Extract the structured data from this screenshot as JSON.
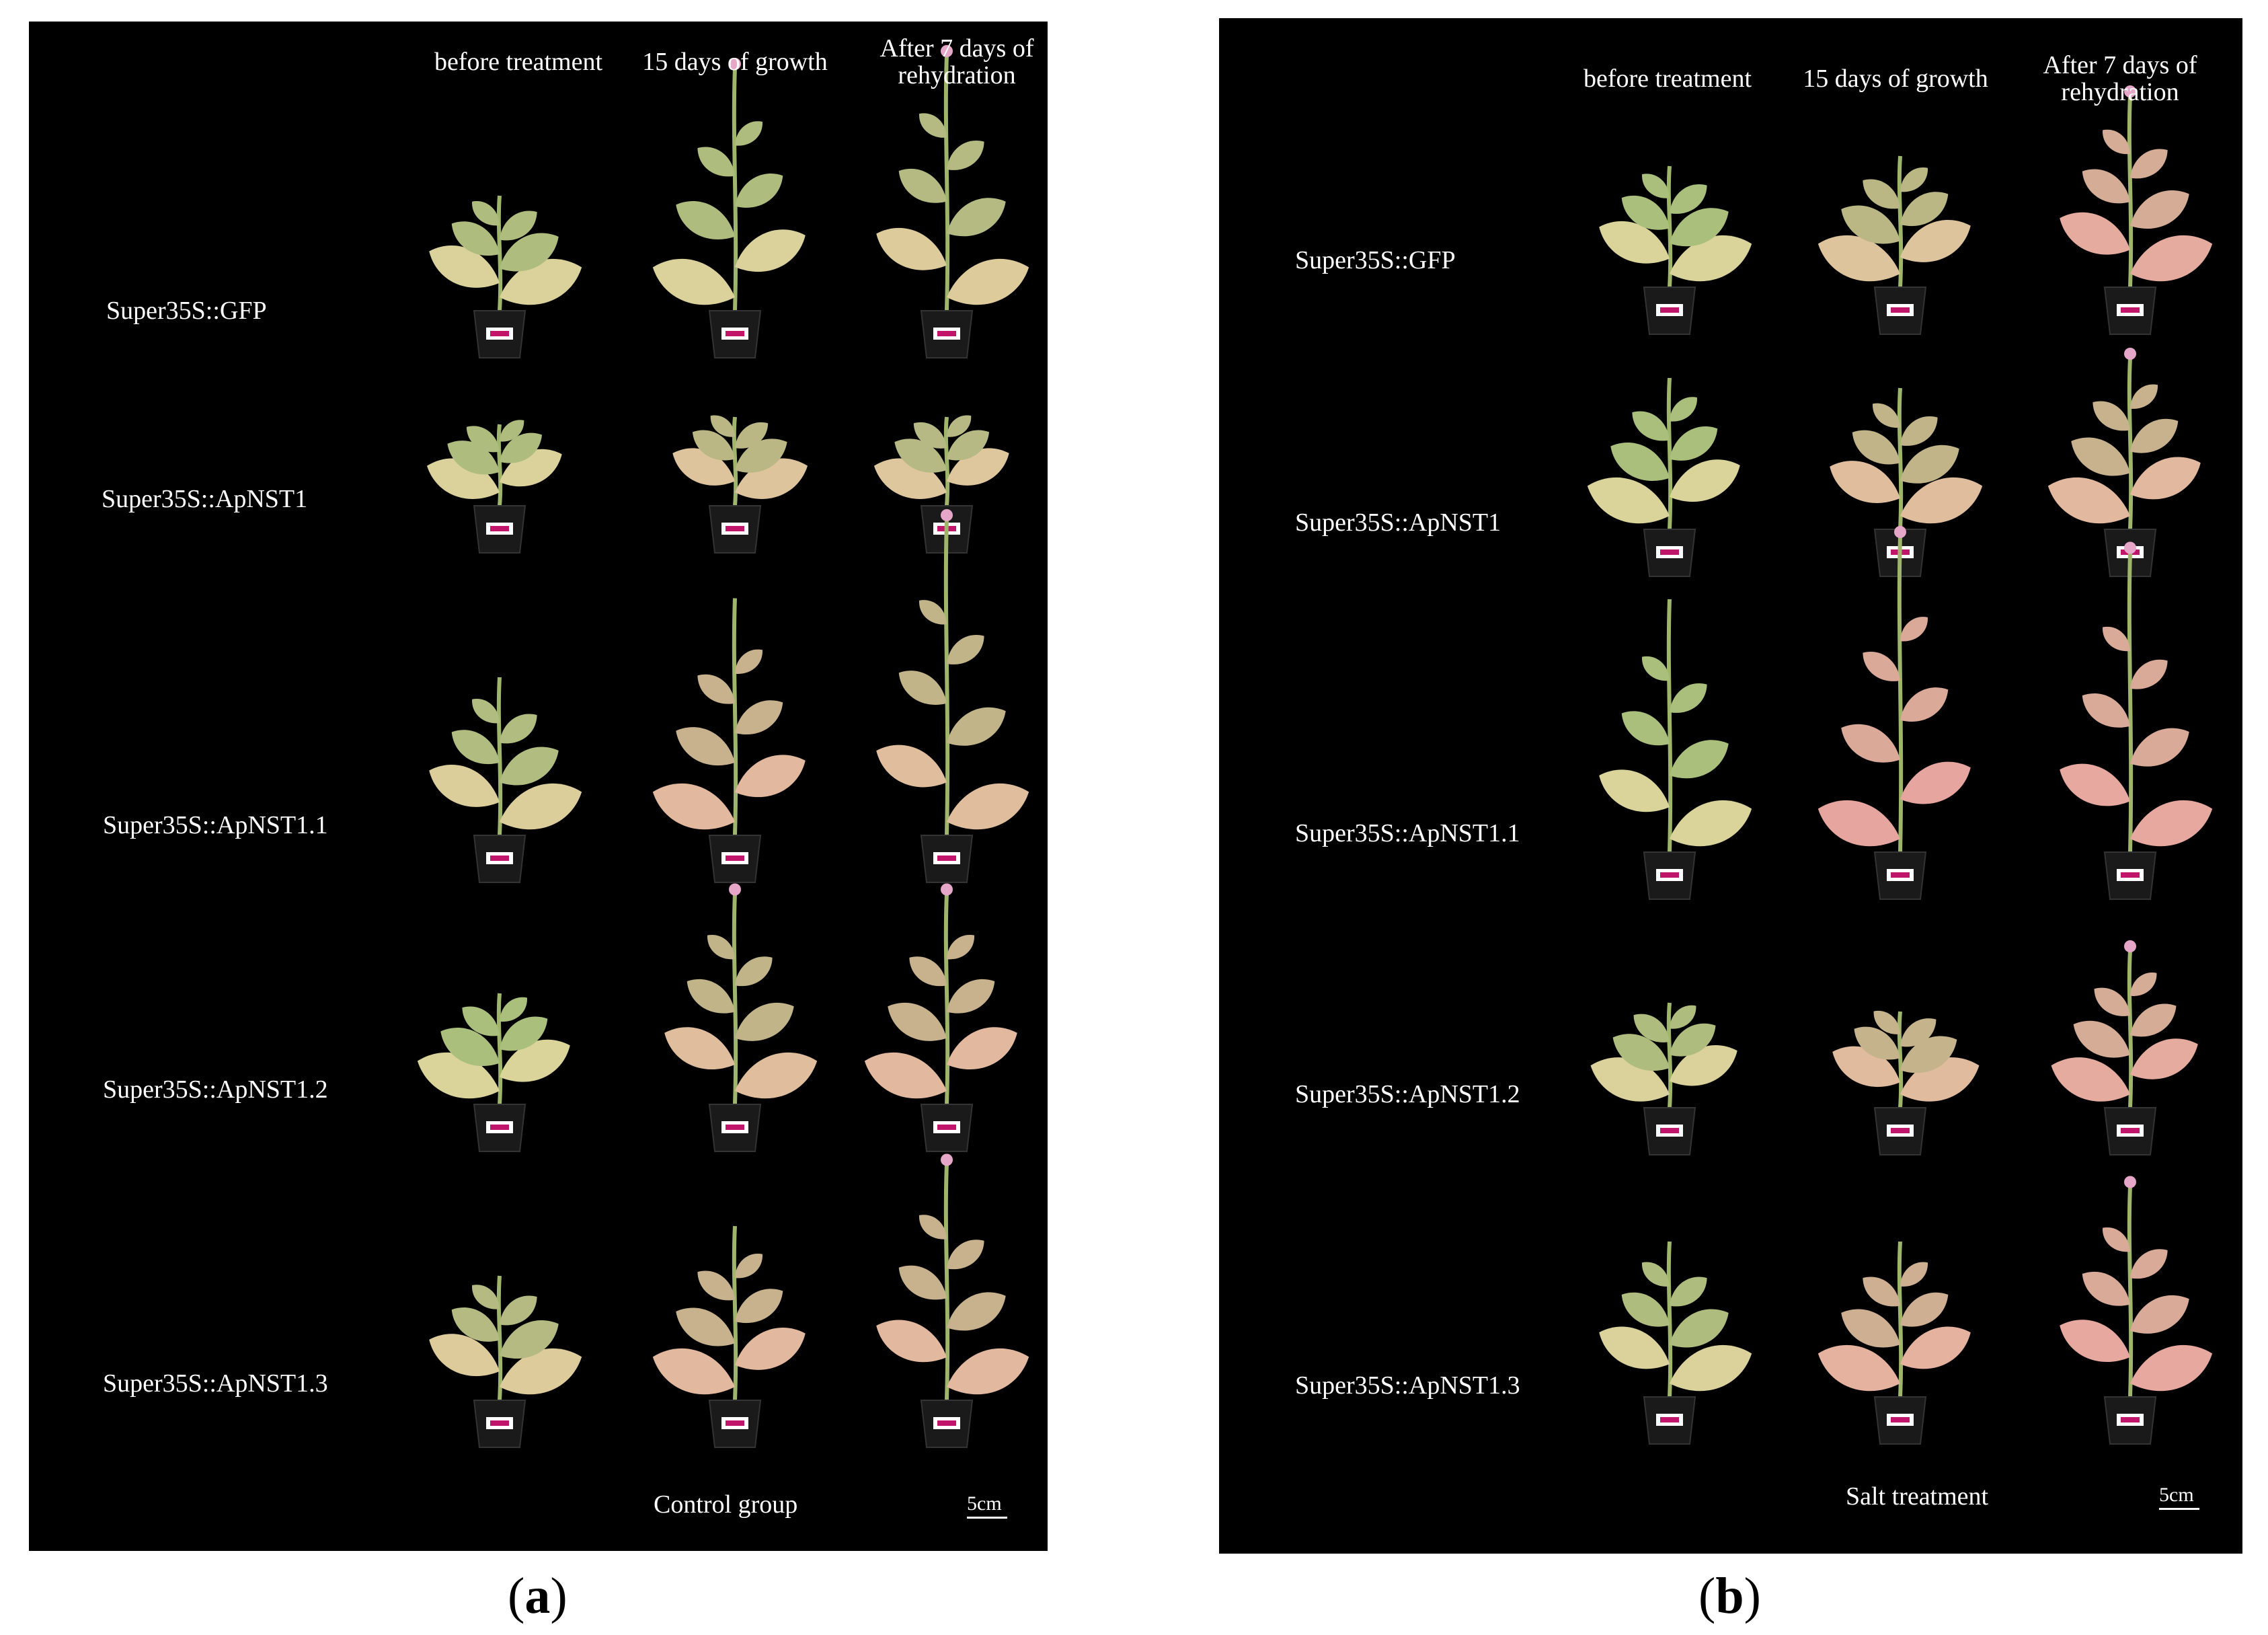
{
  "colors": {
    "background": "#000000",
    "text": "#ffffff",
    "figure_background": "#ffffff",
    "leaf_healthy": "#a7c07a",
    "leaf_pale": "#d9d79a",
    "leaf_stressed": "#e8a3a0",
    "stem": "#9fb56b",
    "pot": "#1a1a1a",
    "tag": "#ffffff",
    "tag_mark": "#c0156b"
  },
  "panels": [
    {
      "letter_prefix": "(",
      "letter": "a",
      "letter_suffix": ")",
      "column_headers": [
        {
          "line1": "before treatment",
          "line2": ""
        },
        {
          "line1": "15 days of growth",
          "line2": ""
        },
        {
          "line1": "After 7 days of",
          "line2": "rehydration"
        }
      ],
      "rows": [
        {
          "label": "Super35S::GFP",
          "plants": [
            {
              "height": 0.45,
              "stress": 0.1
            },
            {
              "height": 0.95,
              "stress": 0.1,
              "flower": true
            },
            {
              "height": 1.0,
              "stress": 0.2,
              "flower": true
            }
          ]
        },
        {
          "label": "Super35S::ApNST1",
          "plants": [
            {
              "height": 0.55,
              "stress": 0.1
            },
            {
              "height": 0.6,
              "stress": 0.3
            },
            {
              "height": 0.6,
              "stress": 0.25
            }
          ]
        },
        {
          "label": "Super35S::ApNST1.1",
          "plants": [
            {
              "height": 0.5,
              "stress": 0.15
            },
            {
              "height": 0.75,
              "stress": 0.5
            },
            {
              "height": 1.0,
              "stress": 0.4,
              "flower": true
            }
          ]
        },
        {
          "label": "Super35S::ApNST1.2",
          "plants": [
            {
              "height": 0.5,
              "stress": 0.05
            },
            {
              "height": 0.95,
              "stress": 0.4,
              "flower": true
            },
            {
              "height": 0.95,
              "stress": 0.5,
              "flower": true
            }
          ]
        },
        {
          "label": "Super35S::ApNST1.3",
          "plants": [
            {
              "height": 0.5,
              "stress": 0.2
            },
            {
              "height": 0.7,
              "stress": 0.5
            },
            {
              "height": 0.95,
              "stress": 0.5,
              "flower": true
            }
          ]
        }
      ],
      "caption": "Control group",
      "scale_label": "5cm"
    },
    {
      "letter_prefix": "(",
      "letter": "b",
      "letter_suffix": ")",
      "column_headers": [
        {
          "line1": "before treatment",
          "line2": ""
        },
        {
          "line1": "15 days of growth",
          "line2": ""
        },
        {
          "line1": "After 7 days of",
          "line2": "rehydration"
        }
      ],
      "rows": [
        {
          "label": "Super35S::GFP",
          "plants": [
            {
              "height": 0.6,
              "stress": 0.05
            },
            {
              "height": 0.65,
              "stress": 0.3
            },
            {
              "height": 0.95,
              "stress": 0.7,
              "flower": true
            }
          ]
        },
        {
          "label": "Super35S::ApNST1",
          "plants": [
            {
              "height": 0.75,
              "stress": 0.05
            },
            {
              "height": 0.7,
              "stress": 0.4
            },
            {
              "height": 0.85,
              "stress": 0.5,
              "flower": true
            }
          ]
        },
        {
          "label": "Super35S::ApNST1.1",
          "plants": [
            {
              "height": 0.8,
              "stress": 0.05
            },
            {
              "height": 1.0,
              "stress": 0.8,
              "flower": true
            },
            {
              "height": 0.95,
              "stress": 0.75,
              "flower": true
            }
          ]
        },
        {
          "label": "Super35S::ApNST1.2",
          "plants": [
            {
              "height": 0.6,
              "stress": 0.1
            },
            {
              "height": 0.55,
              "stress": 0.45
            },
            {
              "height": 0.9,
              "stress": 0.7,
              "flower": true
            }
          ]
        },
        {
          "label": "Super35S::ApNST1.3",
          "plants": [
            {
              "height": 0.7,
              "stress": 0.1
            },
            {
              "height": 0.7,
              "stress": 0.6
            },
            {
              "height": 0.95,
              "stress": 0.75,
              "flower": true
            }
          ]
        }
      ],
      "caption": "Salt treatment",
      "scale_label": "5cm"
    }
  ]
}
